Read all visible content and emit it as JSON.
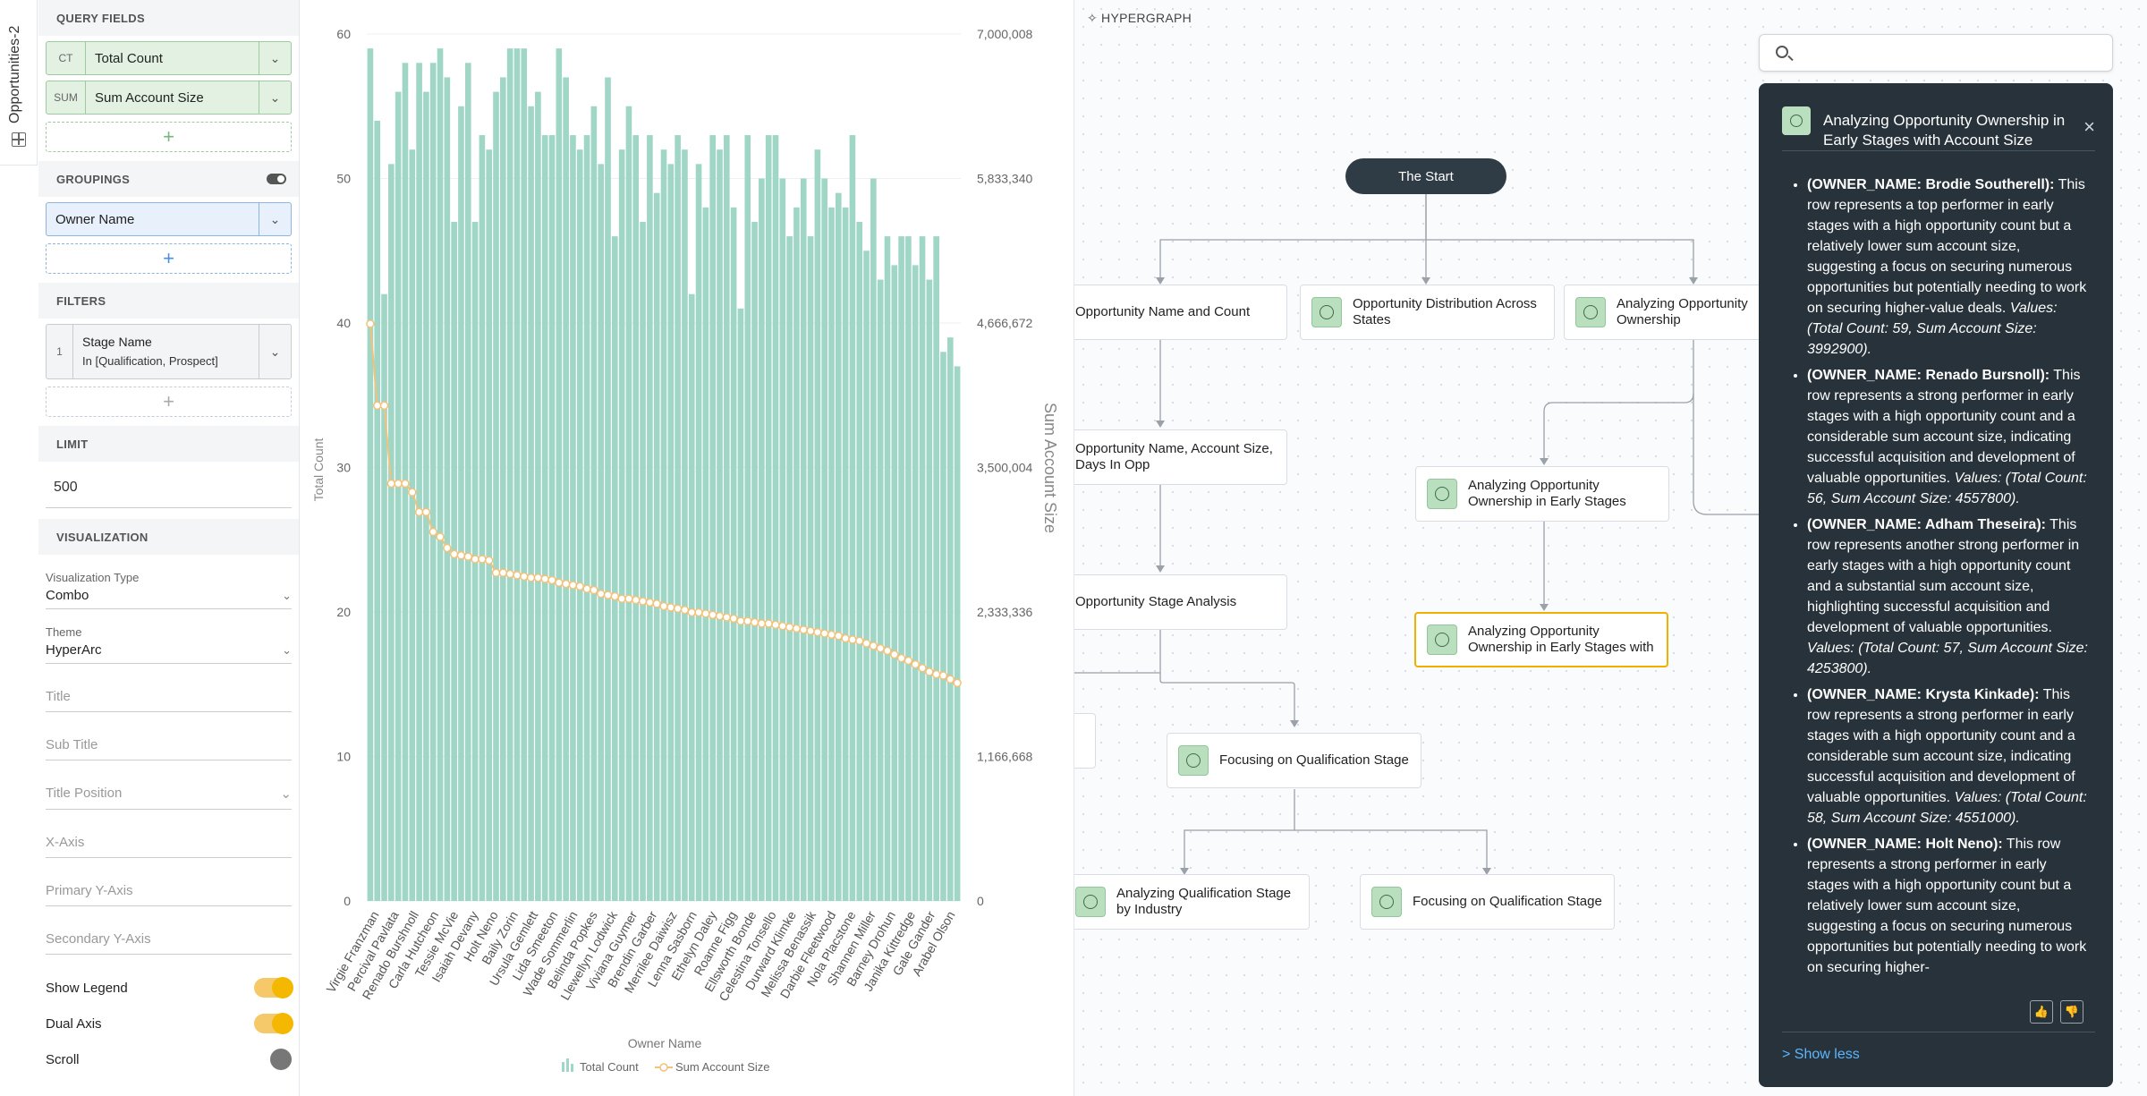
{
  "vtab": {
    "label": "Opportunities-2"
  },
  "query_panel": {
    "query_fields_heading": "QUERY FIELDS",
    "fields": [
      {
        "tag": "CT",
        "name": "Total Count"
      },
      {
        "tag": "SUM",
        "name": "Sum Account Size"
      }
    ],
    "groupings_heading": "GROUPINGS",
    "grouping": {
      "name": "Owner Name"
    },
    "filters_heading": "FILTERS",
    "filter": {
      "index": "1",
      "name": "Stage Name",
      "value": "In [Qualification, Prospect]"
    },
    "limit_heading": "LIMIT",
    "limit_value": "500",
    "visualization_heading": "VISUALIZATION",
    "viz_type_label": "Visualization Type",
    "viz_type_value": "Combo",
    "theme_label": "Theme",
    "theme_value": "HyperArc",
    "title_placeholder": "Title",
    "subtitle_placeholder": "Sub Title",
    "title_position_placeholder": "Title Position",
    "xaxis_placeholder": "X-Axis",
    "primary_y_placeholder": "Primary Y-Axis",
    "secondary_y_placeholder": "Secondary Y-Axis",
    "show_legend_label": "Show Legend",
    "dual_axis_label": "Dual Axis",
    "scroll_label": "Scroll"
  },
  "chart_data": {
    "type": "bar",
    "xlabel": "Owner Name",
    "ylabel": "Total Count",
    "y2label": "Sum Account Size",
    "ylim": [
      0,
      60
    ],
    "y2lim": [
      0,
      7000008
    ],
    "yticks": [
      "0",
      "10",
      "20",
      "30",
      "40",
      "50",
      "60"
    ],
    "y2ticks": [
      "0",
      "1,166,668",
      "2,333,336",
      "3,500,004",
      "4,666,672",
      "5,833,340",
      "7,000,008"
    ],
    "legend": [
      "Total Count",
      "Sum Account Size"
    ],
    "x_tick_labels": [
      "Virgie Franzman",
      "Percival Pavlata",
      "Renado Burshnoll",
      "Carla Hutcheon",
      "Tessie McVie",
      "Isaiah Devany",
      "Holt Neno",
      "Baily Zorin",
      "Ursula Gemlett",
      "Lida Smeeton",
      "Wade Sommerlin",
      "Belinda Popkes",
      "Llewellyn Lodwick",
      "Viviana Guymer",
      "Brendin Garber",
      "Merrilee Daiwisz",
      "Lenna Sasborn",
      "Ethelyn Daley",
      "Roanne Figg",
      "Ellsworth Bonde",
      "Celestina Tonsello",
      "Durward Klimke",
      "Melissa Benassik",
      "Darbie Fleetwood",
      "Nola Placstone",
      "Shannen Miller",
      "Barney Drohun",
      "Janika Kittredge",
      "Gale Gander",
      "Arabel Olson"
    ],
    "series": [
      {
        "name": "Total Count",
        "type": "bar",
        "values": [
          59,
          54,
          42,
          51,
          56,
          58,
          52,
          58,
          56,
          58,
          59,
          57,
          47,
          55,
          58,
          47,
          53,
          52,
          56,
          57,
          59,
          59,
          59,
          55,
          56,
          53,
          53,
          59,
          57,
          53,
          52,
          53,
          55,
          51,
          57,
          46,
          52,
          55,
          53,
          47,
          53,
          49,
          52,
          51,
          53,
          52,
          42,
          51,
          48,
          53,
          52,
          53,
          48,
          41,
          53,
          47,
          50,
          53,
          53,
          50,
          46,
          48,
          50,
          46,
          52,
          50,
          48,
          49,
          48,
          53,
          47,
          45,
          50,
          43,
          46,
          44,
          46,
          46,
          44,
          46,
          43,
          46,
          38,
          39,
          37
        ]
      },
      {
        "name": "Sum Account Size",
        "type": "line",
        "values": [
          4660000,
          4000000,
          4000000,
          3370000,
          3370000,
          3370000,
          3300000,
          3140000,
          3140000,
          2980000,
          2940000,
          2850000,
          2800000,
          2790000,
          2780000,
          2760000,
          2760000,
          2750000,
          2650000,
          2650000,
          2640000,
          2630000,
          2620000,
          2610000,
          2610000,
          2600000,
          2590000,
          2570000,
          2560000,
          2550000,
          2540000,
          2520000,
          2510000,
          2480000,
          2470000,
          2460000,
          2440000,
          2440000,
          2430000,
          2420000,
          2410000,
          2400000,
          2380000,
          2370000,
          2360000,
          2350000,
          2330000,
          2330000,
          2320000,
          2310000,
          2300000,
          2290000,
          2280000,
          2260000,
          2260000,
          2250000,
          2240000,
          2240000,
          2230000,
          2220000,
          2210000,
          2200000,
          2190000,
          2180000,
          2170000,
          2160000,
          2150000,
          2140000,
          2120000,
          2110000,
          2100000,
          2080000,
          2060000,
          2040000,
          2020000,
          1990000,
          1960000,
          1940000,
          1910000,
          1880000,
          1850000,
          1830000,
          1820000,
          1790000,
          1760000
        ]
      }
    ]
  },
  "hypergraph": {
    "title": "HYPERGRAPH",
    "start": "The Start",
    "nodes": [
      {
        "id": "n1",
        "label": "Opportunity Name and Count"
      },
      {
        "id": "n2",
        "label": "Opportunity Distribution Across States"
      },
      {
        "id": "n3",
        "label": "Analyzing Opportunity Ownership"
      },
      {
        "id": "n4",
        "label": "Opportunity Name, Account Size, Days In Opp"
      },
      {
        "id": "n5",
        "label": "Analyzing Opportunity Ownership in Early Stages"
      },
      {
        "id": "n6",
        "label": "Opportunity Stage Analysis"
      },
      {
        "id": "n7",
        "label": "Analyzing Opportunity Ownership in Early Stages with"
      },
      {
        "id": "n8",
        "label": "Focusing on Qualification Stage"
      },
      {
        "id": "n9",
        "label": "Analyzing Qualification Stage by Industry"
      },
      {
        "id": "n10",
        "label": "Focusing on Qualification Stage"
      }
    ]
  },
  "search": {
    "placeholder": ""
  },
  "insight": {
    "title": "Analyzing Opportunity Ownership in Early Stages with Account Size",
    "items": [
      {
        "owner": "(OWNER_NAME: Brodie Southerell)",
        "text": " This row represents a top performer in early stages with a high opportunity count but a relatively lower sum account size, suggesting a focus on securing numerous opportunities but potentially needing to work on securing higher-value deals. ",
        "values": "Values: (Total Count: 59, Sum Account Size: 3992900)."
      },
      {
        "owner": "(OWNER_NAME: Renado Bursnoll)",
        "text": " This row represents a strong performer in early stages with a high opportunity count and a considerable sum account size, indicating successful acquisition and development of valuable opportunities. ",
        "values": "Values: (Total Count: 56, Sum Account Size: 4557800)."
      },
      {
        "owner": "(OWNER_NAME: Adham Theseira)",
        "text": " This row represents another strong performer in early stages with a high opportunity count and a substantial sum account size, highlighting successful acquisition and development of valuable opportunities. ",
        "values": "Values: (Total Count: 57, Sum Account Size: 4253800)."
      },
      {
        "owner": "(OWNER_NAME: Krysta Kinkade)",
        "text": " This row represents a strong performer in early stages with a high opportunity count and a considerable sum account size, indicating successful acquisition and development of valuable opportunities. ",
        "values": "Values: (Total Count: 58, Sum Account Size: 4551000)."
      },
      {
        "owner": "(OWNER_NAME: Holt Neno)",
        "text": " This row represents a strong performer in early stages with a high opportunity count but a relatively lower sum account size, suggesting a focus on securing numerous opportunities but potentially needing to work on securing higher-",
        "values": ""
      }
    ],
    "show_less": "> Show less"
  }
}
